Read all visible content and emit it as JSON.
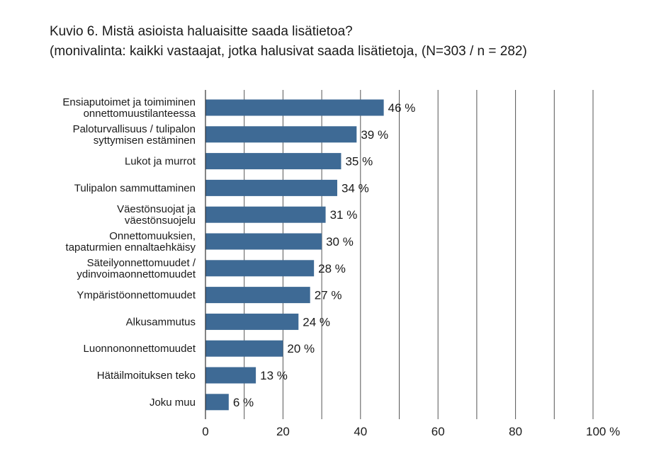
{
  "chart_data": {
    "type": "bar",
    "orientation": "horizontal",
    "title": "Kuvio 6. Mistä asioista haluaisitte saada lisätietoa?",
    "subtitle": "(monivalinta: kaikki vastaajat, jotka halusivat saada lisätietoja, (N=303 / n = 282)",
    "categories": [
      [
        "Ensiaputoimet ja toimiminen",
        "onnettomuustilanteessa"
      ],
      [
        "Paloturvallisuus / tulipalon",
        "syttymisen estäminen"
      ],
      [
        "Lukot ja murrot"
      ],
      [
        "Tulipalon sammuttaminen"
      ],
      [
        "Väestönsuojat ja",
        "väestönsuojelu"
      ],
      [
        "Onnettomuuksien,",
        "tapaturmien ennaltaehkäisy"
      ],
      [
        "Säteilyonnettomuudet /",
        "ydinvoimaonnettomuudet"
      ],
      [
        "Ympäristöonnettomuudet"
      ],
      [
        "Alkusammutus"
      ],
      [
        "Luonnononnettomuudet"
      ],
      [
        "Hätäilmoituksen teko"
      ],
      [
        "Joku muu"
      ]
    ],
    "values": [
      46,
      39,
      35,
      34,
      31,
      30,
      28,
      27,
      24,
      20,
      13,
      6
    ],
    "value_labels": [
      "46 %",
      "39 %",
      "35 %",
      "34 %",
      "31 %",
      "30 %",
      "28 %",
      "27 %",
      "24 %",
      "20 %",
      "13 %",
      "6 %"
    ],
    "xlim": [
      0,
      100
    ],
    "xticks": [
      0,
      20,
      40,
      60,
      80,
      100
    ],
    "xtick_labels": [
      "0",
      "20",
      "40",
      "60",
      "80",
      "100 %"
    ],
    "grid": true,
    "bar_color": "#3e6a95"
  }
}
